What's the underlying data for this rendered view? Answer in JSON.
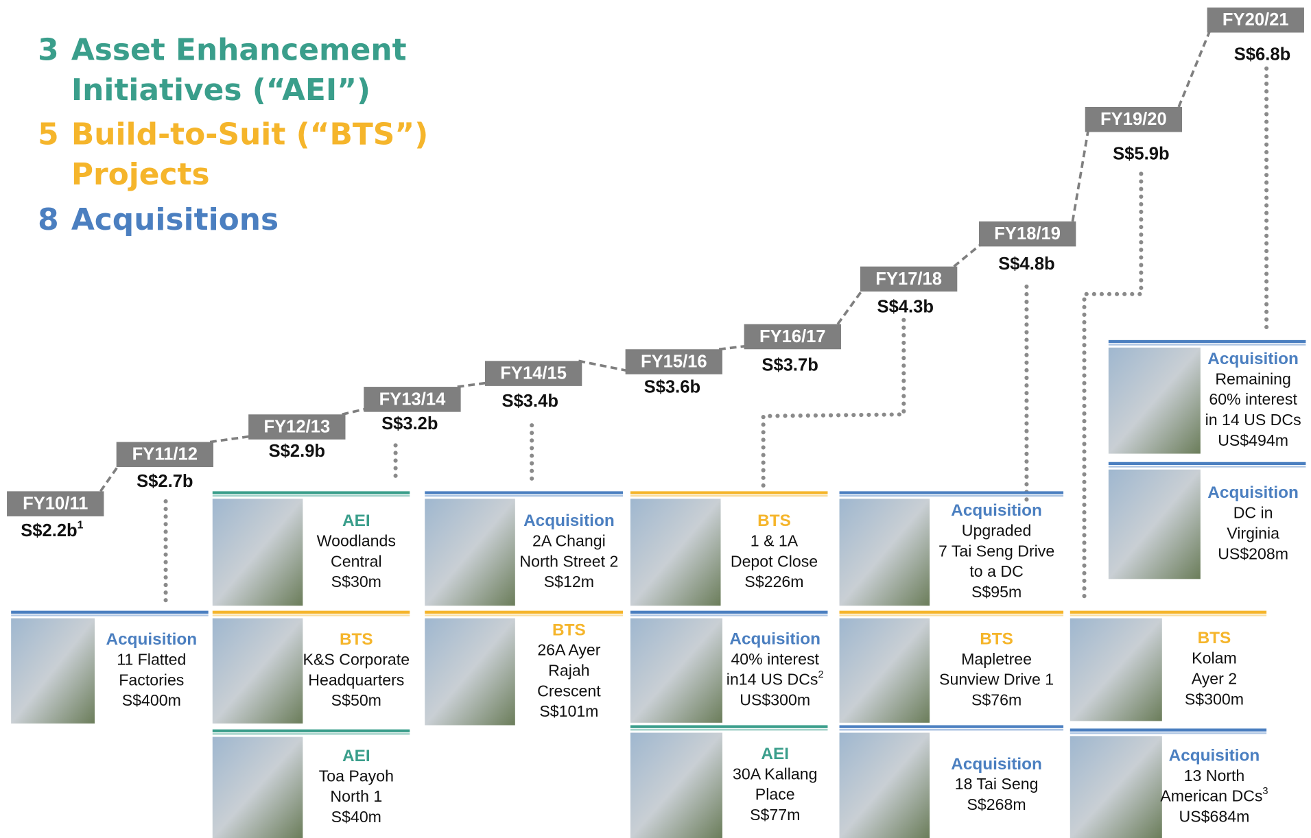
{
  "headline": [
    {
      "count": "3",
      "lines": [
        "Asset Enhancement",
        "Initiatives (“AEI”)"
      ]
    },
    {
      "count": "5",
      "lines": [
        "Build-to-Suit (“BTS”)",
        "Projects"
      ]
    },
    {
      "count": "8",
      "lines": [
        "Acquisitions"
      ]
    }
  ],
  "timeline": [
    {
      "year": "FY10/11",
      "aum": "S$2.2b",
      "sup": "1"
    },
    {
      "year": "FY11/12",
      "aum": "S$2.7b"
    },
    {
      "year": "FY12/13",
      "aum": "S$2.9b"
    },
    {
      "year": "FY13/14",
      "aum": "S$3.2b"
    },
    {
      "year": "FY14/15",
      "aum": "S$3.4b"
    },
    {
      "year": "FY15/16",
      "aum": "S$3.6b"
    },
    {
      "year": "FY16/17",
      "aum": "S$3.7b"
    },
    {
      "year": "FY17/18",
      "aum": "S$4.3b"
    },
    {
      "year": "FY18/19",
      "aum": "S$4.8b"
    },
    {
      "year": "FY19/20",
      "aum": "S$5.9b"
    },
    {
      "year": "FY20/21",
      "aum": "S$6.8b"
    }
  ],
  "cards": [
    {
      "type": "Acquisition",
      "lines": [
        "11 Flatted",
        "Factories",
        "S$400m"
      ]
    },
    {
      "type": "AEI",
      "lines": [
        "Woodlands",
        "Central",
        "S$30m"
      ]
    },
    {
      "type": "BTS",
      "lines": [
        "K&S Corporate",
        "Headquarters",
        "S$50m"
      ]
    },
    {
      "type": "AEI",
      "lines": [
        "Toa Payoh",
        "North 1",
        "S$40m"
      ]
    },
    {
      "type": "Acquisition",
      "lines": [
        "2A Changi",
        "North Street 2",
        "S$12m"
      ]
    },
    {
      "type": "BTS",
      "lines": [
        "26A Ayer",
        "Rajah",
        "Crescent",
        "S$101m"
      ]
    },
    {
      "type": "BTS",
      "lines": [
        "1 & 1A",
        "Depot Close",
        "S$226m"
      ]
    },
    {
      "type": "Acquisition",
      "lines": [
        "40% interest",
        "in14 US DCs",
        "US$300m"
      ],
      "sup": {
        "line": 1,
        "text": "2"
      }
    },
    {
      "type": "AEI",
      "lines": [
        "30A Kallang",
        "Place",
        "S$77m"
      ]
    },
    {
      "type": "Acquisition",
      "lines": [
        "Upgraded",
        "7 Tai Seng Drive",
        "to a DC",
        "S$95m"
      ]
    },
    {
      "type": "BTS",
      "lines": [
        "Mapletree",
        "Sunview Drive 1",
        "S$76m"
      ]
    },
    {
      "type": "Acquisition",
      "lines": [
        "18 Tai Seng",
        "S$268m"
      ]
    },
    {
      "type": "BTS",
      "lines": [
        "Kolam",
        "Ayer 2",
        "S$300m"
      ]
    },
    {
      "type": "Acquisition",
      "lines": [
        "13 North",
        "American DCs",
        "US$684m"
      ],
      "sup": {
        "line": 1,
        "text": "3"
      }
    },
    {
      "type": "Acquisition",
      "lines": [
        "Remaining",
        "60% interest",
        "in 14 US DCs",
        "US$494m"
      ]
    },
    {
      "type": "Acquisition",
      "lines": [
        "DC in",
        "Virginia",
        "US$208m"
      ]
    }
  ]
}
